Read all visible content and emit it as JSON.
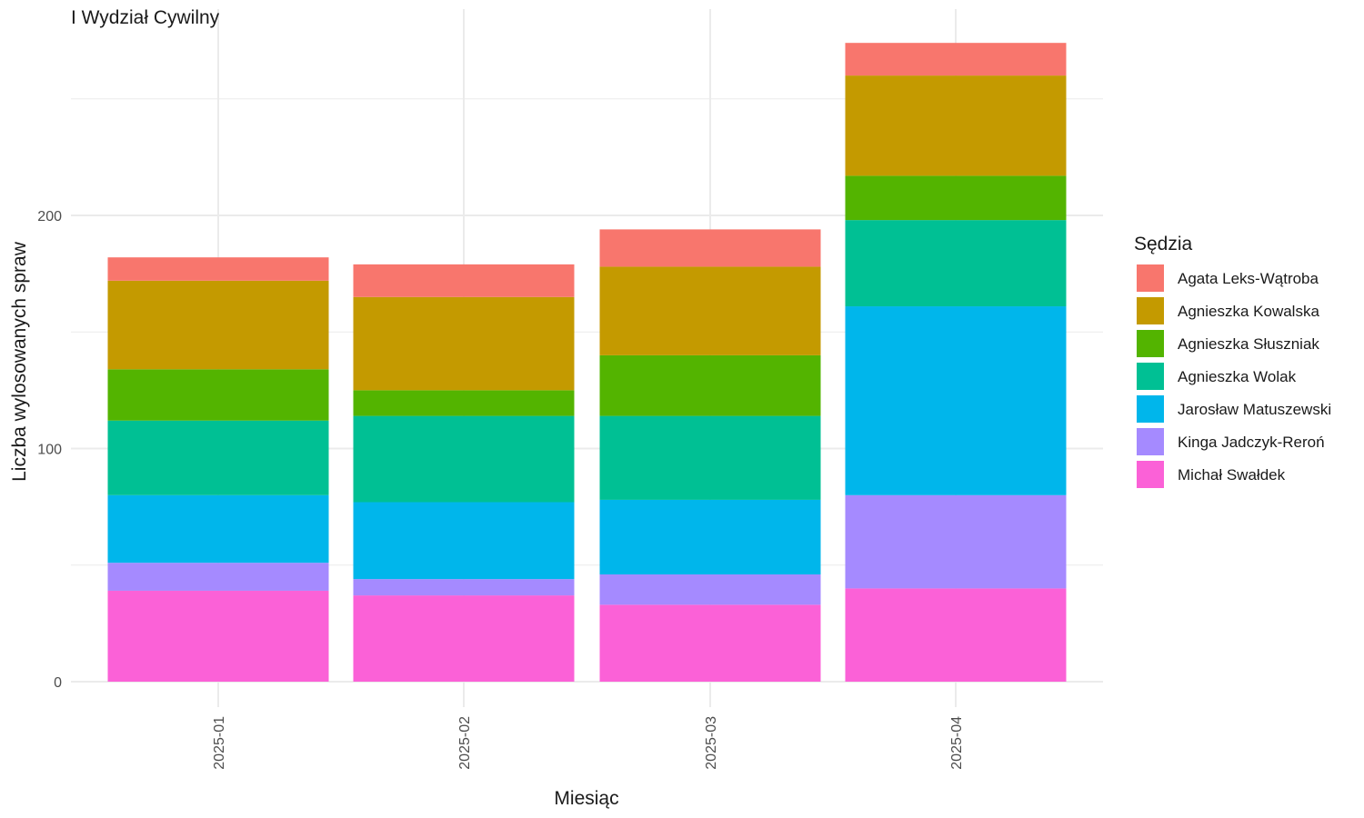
{
  "chart_data": {
    "type": "bar",
    "stacked": true,
    "title": "I Wydział Cywilny",
    "xlabel": "Miesiąc",
    "ylabel": "Liczba wylosowanych spraw",
    "ylim": [
      0,
      280
    ],
    "yticks": [
      0,
      100,
      200
    ],
    "grid": true,
    "legend_title": "Sędzia",
    "legend_position": "right",
    "categories": [
      "2025-01",
      "2025-02",
      "2025-03",
      "2025-04"
    ],
    "series": [
      {
        "name": "Agata Leks-Wątroba",
        "color": "#F8766D",
        "values": [
          10,
          14,
          16,
          14
        ]
      },
      {
        "name": "Agnieszka Kowalska",
        "color": "#C49A00",
        "values": [
          38,
          40,
          38,
          43
        ]
      },
      {
        "name": "Agnieszka Słuszniak",
        "color": "#53B400",
        "values": [
          22,
          11,
          26,
          19
        ]
      },
      {
        "name": "Agnieszka Wolak",
        "color": "#00C094",
        "values": [
          32,
          37,
          36,
          37
        ]
      },
      {
        "name": "Jarosław Matuszewski",
        "color": "#00B6EB",
        "values": [
          29,
          33,
          32,
          81
        ]
      },
      {
        "name": "Kinga Jadczyk-Reroń",
        "color": "#A58AFF",
        "values": [
          12,
          7,
          13,
          40
        ]
      },
      {
        "name": "Michał Swałdek",
        "color": "#FB61D7",
        "values": [
          39,
          37,
          33,
          40
        ]
      }
    ]
  }
}
